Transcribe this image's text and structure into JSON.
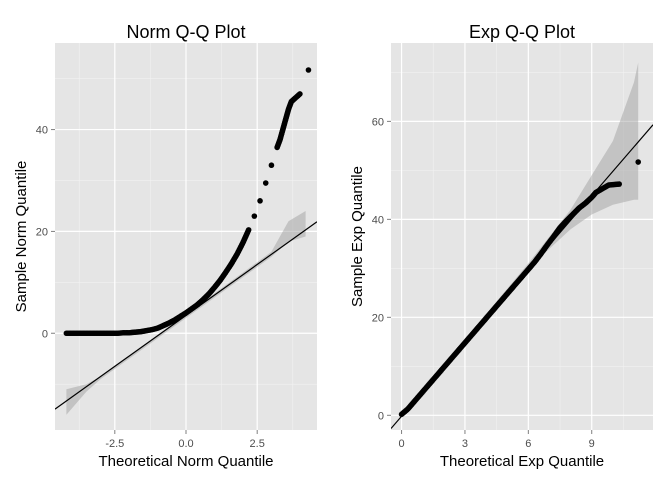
{
  "chart_data": [
    {
      "type": "scatter",
      "title": "Norm Q-Q Plot",
      "xlabel": "Theoretical Norm Quantile",
      "ylabel": "Sample Norm Quantile",
      "xlim": [
        -4.6,
        4.6
      ],
      "ylim": [
        -19,
        57
      ],
      "xticks": [
        -2.5,
        0.0,
        2.5
      ],
      "xtick_labels": [
        "-2.5",
        "0.0",
        "2.5"
      ],
      "yticks": [
        0,
        20,
        40
      ],
      "ytick_labels": [
        "0",
        "20",
        "40"
      ],
      "grid": true,
      "reference_line": {
        "intercept": 3.5,
        "slope": 4.0
      },
      "confidence_band": {
        "x": [
          -4.2,
          -3.5,
          -3.0,
          3.0,
          3.6,
          4.2
        ],
        "lower": [
          -16,
          -11.5,
          -9,
          15,
          18,
          19
        ],
        "upper": [
          -11,
          -10,
          -8.5,
          16,
          22,
          24
        ]
      },
      "points": {
        "x": [
          -4.2,
          -4.0,
          -3.8,
          -3.6,
          -3.4,
          -3.2,
          -3.0,
          -2.8,
          -2.6,
          -2.4,
          -2.2,
          -2.0,
          -1.8,
          -1.6,
          -1.4,
          -1.2,
          -1.0,
          -0.8,
          -0.6,
          -0.4,
          -0.2,
          0.0,
          0.2,
          0.4,
          0.6,
          0.8,
          1.0,
          1.2,
          1.4,
          1.6,
          1.8,
          2.0,
          2.2,
          2.4,
          2.6,
          2.8,
          3.0,
          3.2,
          3.3,
          3.4,
          3.5,
          3.6,
          3.7,
          3.8,
          4.0,
          4.3
        ],
        "y": [
          0.0,
          0.0,
          0.0,
          0.0,
          0.0,
          0.0,
          0.0,
          0.0,
          0.0,
          0.0,
          0.1,
          0.1,
          0.2,
          0.3,
          0.5,
          0.7,
          1.0,
          1.5,
          2.0,
          2.6,
          3.3,
          4.0,
          4.8,
          5.6,
          6.6,
          7.7,
          9.0,
          10.4,
          12.0,
          13.7,
          15.6,
          17.8,
          20.3,
          23.0,
          26.0,
          29.5,
          33.0,
          36.5,
          38.0,
          40.0,
          42.0,
          44.0,
          45.5,
          46.0,
          47.0,
          51.7
        ]
      }
    },
    {
      "type": "scatter",
      "title": "Exp Q-Q Plot",
      "xlabel": "Theoretical Exp Quantile",
      "ylabel": "Sample Exp Quantile",
      "xlim": [
        -0.5,
        11.9
      ],
      "ylim": [
        -3,
        76
      ],
      "xticks": [
        0,
        3,
        6,
        9
      ],
      "xtick_labels": [
        "0",
        "3",
        "6",
        "9"
      ],
      "yticks": [
        0,
        20,
        40,
        60
      ],
      "ytick_labels": [
        "0",
        "20",
        "40",
        "60"
      ],
      "grid": true,
      "reference_line": {
        "intercept": -0.2,
        "slope": 5.0
      },
      "confidence_band": {
        "x": [
          0,
          6,
          8,
          9,
          10,
          11,
          11.2
        ],
        "lower": [
          0,
          30,
          38,
          41,
          43,
          44,
          44
        ],
        "upper": [
          0,
          31,
          42,
          49,
          56,
          68,
          72
        ]
      },
      "points": {
        "x": [
          0,
          0.3,
          0.6,
          0.9,
          1.2,
          1.5,
          1.8,
          2.1,
          2.4,
          2.7,
          3.0,
          3.3,
          3.6,
          3.9,
          4.2,
          4.5,
          4.8,
          5.1,
          5.4,
          5.7,
          6.0,
          6.3,
          6.6,
          6.9,
          7.2,
          7.5,
          7.8,
          8.1,
          8.4,
          8.7,
          9.0,
          9.2,
          9.4,
          9.8,
          10.3,
          11.2
        ],
        "y": [
          0.2,
          1.3,
          2.8,
          4.3,
          5.8,
          7.3,
          8.8,
          10.3,
          11.8,
          13.3,
          14.8,
          16.3,
          17.8,
          19.3,
          20.8,
          22.3,
          23.8,
          25.3,
          26.8,
          28.3,
          29.8,
          31.3,
          33.0,
          34.8,
          36.5,
          38.3,
          39.7,
          41.0,
          42.3,
          43.3,
          44.5,
          45.5,
          46.0,
          47.0,
          47.2,
          51.7
        ]
      }
    }
  ]
}
